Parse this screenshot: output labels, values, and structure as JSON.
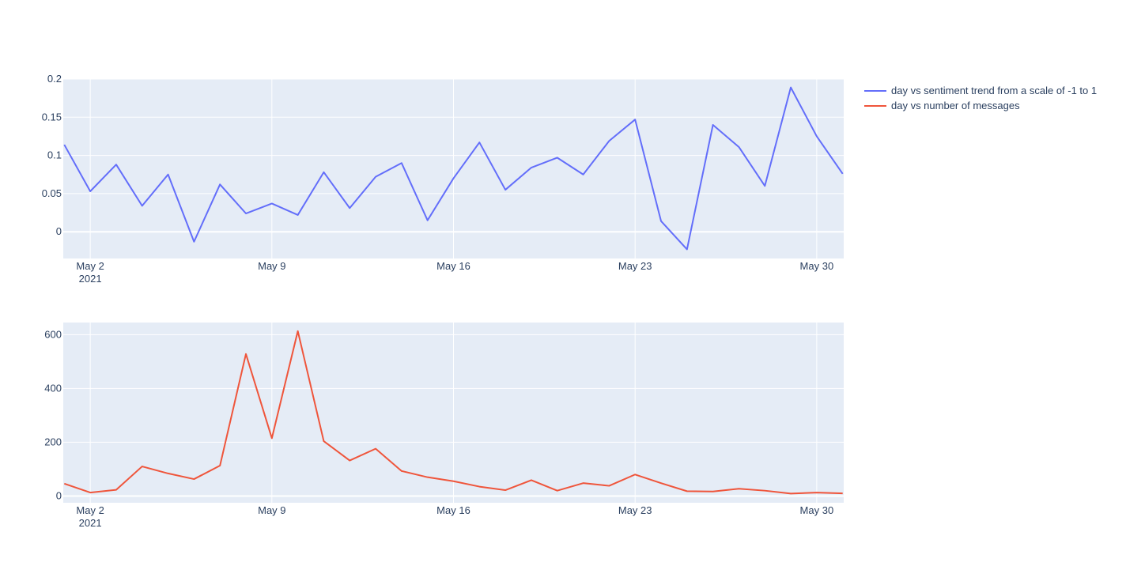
{
  "chart_data": [
    {
      "type": "line",
      "series": [
        {
          "name": "day vs sentiment trend from a scale of -1 to 1",
          "color": "#636efa",
          "x": [
            "2021-05-01",
            "2021-05-02",
            "2021-05-03",
            "2021-05-04",
            "2021-05-05",
            "2021-05-06",
            "2021-05-07",
            "2021-05-08",
            "2021-05-09",
            "2021-05-10",
            "2021-05-11",
            "2021-05-12",
            "2021-05-13",
            "2021-05-14",
            "2021-05-15",
            "2021-05-16",
            "2021-05-17",
            "2021-05-18",
            "2021-05-19",
            "2021-05-20",
            "2021-05-21",
            "2021-05-22",
            "2021-05-23",
            "2021-05-24",
            "2021-05-25",
            "2021-05-26",
            "2021-05-27",
            "2021-05-28",
            "2021-05-29",
            "2021-05-30",
            "2021-05-31"
          ],
          "values": [
            0.114,
            0.053,
            0.088,
            0.034,
            0.075,
            -0.013,
            0.062,
            0.024,
            0.037,
            0.022,
            0.078,
            0.031,
            0.072,
            0.09,
            0.015,
            0.07,
            0.117,
            0.055,
            0.084,
            0.097,
            0.075,
            0.119,
            0.147,
            0.014,
            -0.023,
            0.14,
            0.111,
            0.06,
            0.189,
            0.125,
            0.076
          ]
        }
      ],
      "xlim": [
        "2021-05-01",
        "2021-05-31"
      ],
      "ylim": [
        -0.035,
        0.2
      ],
      "yticks": [
        0,
        0.05,
        0.1,
        0.15,
        0.2
      ],
      "ytick_labels": [
        "0",
        "0.05",
        "0.1",
        "0.15",
        "0.2"
      ],
      "xticks": [
        "2021-05-02",
        "2021-05-09",
        "2021-05-16",
        "2021-05-23",
        "2021-05-30"
      ],
      "xtick_labels": [
        "May 2",
        "May 9",
        "May 16",
        "May 23",
        "May 30"
      ],
      "xtick_sublabel": "2021",
      "grid": true,
      "background": "#e5ecf6"
    },
    {
      "type": "line",
      "series": [
        {
          "name": "day vs number of messages",
          "color": "#ef553b",
          "x": [
            "2021-05-01",
            "2021-05-02",
            "2021-05-03",
            "2021-05-04",
            "2021-05-05",
            "2021-05-06",
            "2021-05-07",
            "2021-05-08",
            "2021-05-09",
            "2021-05-10",
            "2021-05-11",
            "2021-05-12",
            "2021-05-13",
            "2021-05-14",
            "2021-05-15",
            "2021-05-16",
            "2021-05-17",
            "2021-05-18",
            "2021-05-19",
            "2021-05-20",
            "2021-05-21",
            "2021-05-22",
            "2021-05-23",
            "2021-05-24",
            "2021-05-25",
            "2021-05-26",
            "2021-05-27",
            "2021-05-28",
            "2021-05-29",
            "2021-05-30",
            "2021-05-31"
          ],
          "values": [
            46,
            13,
            23,
            110,
            84,
            63,
            113,
            528,
            215,
            613,
            204,
            132,
            176,
            93,
            70,
            55,
            35,
            22,
            59,
            20,
            48,
            38,
            80,
            48,
            18,
            17,
            27,
            20,
            9,
            13,
            10
          ]
        }
      ],
      "xlim": [
        "2021-05-01",
        "2021-05-31"
      ],
      "ylim": [
        -25,
        645
      ],
      "yticks": [
        0,
        200,
        400,
        600
      ],
      "ytick_labels": [
        "0",
        "200",
        "400",
        "600"
      ],
      "xticks": [
        "2021-05-02",
        "2021-05-09",
        "2021-05-16",
        "2021-05-23",
        "2021-05-30"
      ],
      "xtick_labels": [
        "May 2",
        "May 9",
        "May 16",
        "May 23",
        "May 30"
      ],
      "xtick_sublabel": "2021",
      "grid": true,
      "background": "#e5ecf6"
    }
  ],
  "legend": {
    "placement": "top-right",
    "items": [
      {
        "label": "day vs sentiment trend from a scale of -1 to 1",
        "color": "#636efa"
      },
      {
        "label": "day vs number of messages",
        "color": "#ef553b"
      }
    ]
  }
}
